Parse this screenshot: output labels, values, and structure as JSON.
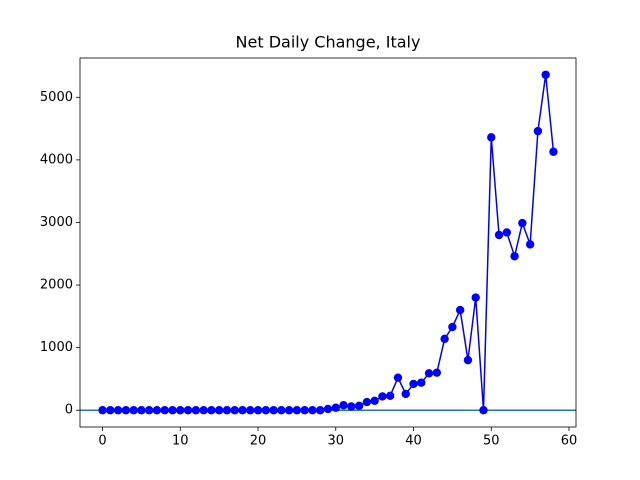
{
  "chart_data": {
    "type": "line",
    "title": "Net Daily Change, Italy",
    "x": [
      0,
      1,
      2,
      3,
      4,
      5,
      6,
      7,
      8,
      9,
      10,
      11,
      12,
      13,
      14,
      15,
      16,
      17,
      18,
      19,
      20,
      21,
      22,
      23,
      24,
      25,
      26,
      27,
      28,
      29,
      30,
      31,
      32,
      33,
      34,
      35,
      36,
      37,
      38,
      39,
      40,
      41,
      42,
      43,
      44,
      45,
      46,
      47,
      48,
      49,
      50,
      51,
      52,
      53,
      54,
      55,
      56,
      57,
      58
    ],
    "series": [
      {
        "color": "#0000ff",
        "marker": "circle",
        "values": [
          0,
          0,
          0,
          0,
          0,
          0,
          0,
          0,
          0,
          0,
          0,
          0,
          0,
          0,
          0,
          0,
          0,
          0,
          0,
          0,
          0,
          0,
          0,
          0,
          0,
          0,
          0,
          0,
          0,
          20,
          40,
          80,
          60,
          70,
          130,
          150,
          220,
          230,
          520,
          260,
          420,
          440,
          590,
          600,
          1140,
          1330,
          1600,
          800,
          1800,
          0,
          4360,
          2800,
          2840,
          2460,
          2990,
          2650,
          4460,
          5360,
          4130
        ]
      }
    ],
    "hline": {
      "value": 0,
      "color": "#1f77b4"
    },
    "xlim": [
      -2.9,
      60.9
    ],
    "ylim": [
      -268,
      5628
    ],
    "xticks": [
      0,
      10,
      20,
      30,
      40,
      50,
      60
    ],
    "yticks": [
      0,
      1000,
      2000,
      3000,
      4000,
      5000
    ]
  }
}
